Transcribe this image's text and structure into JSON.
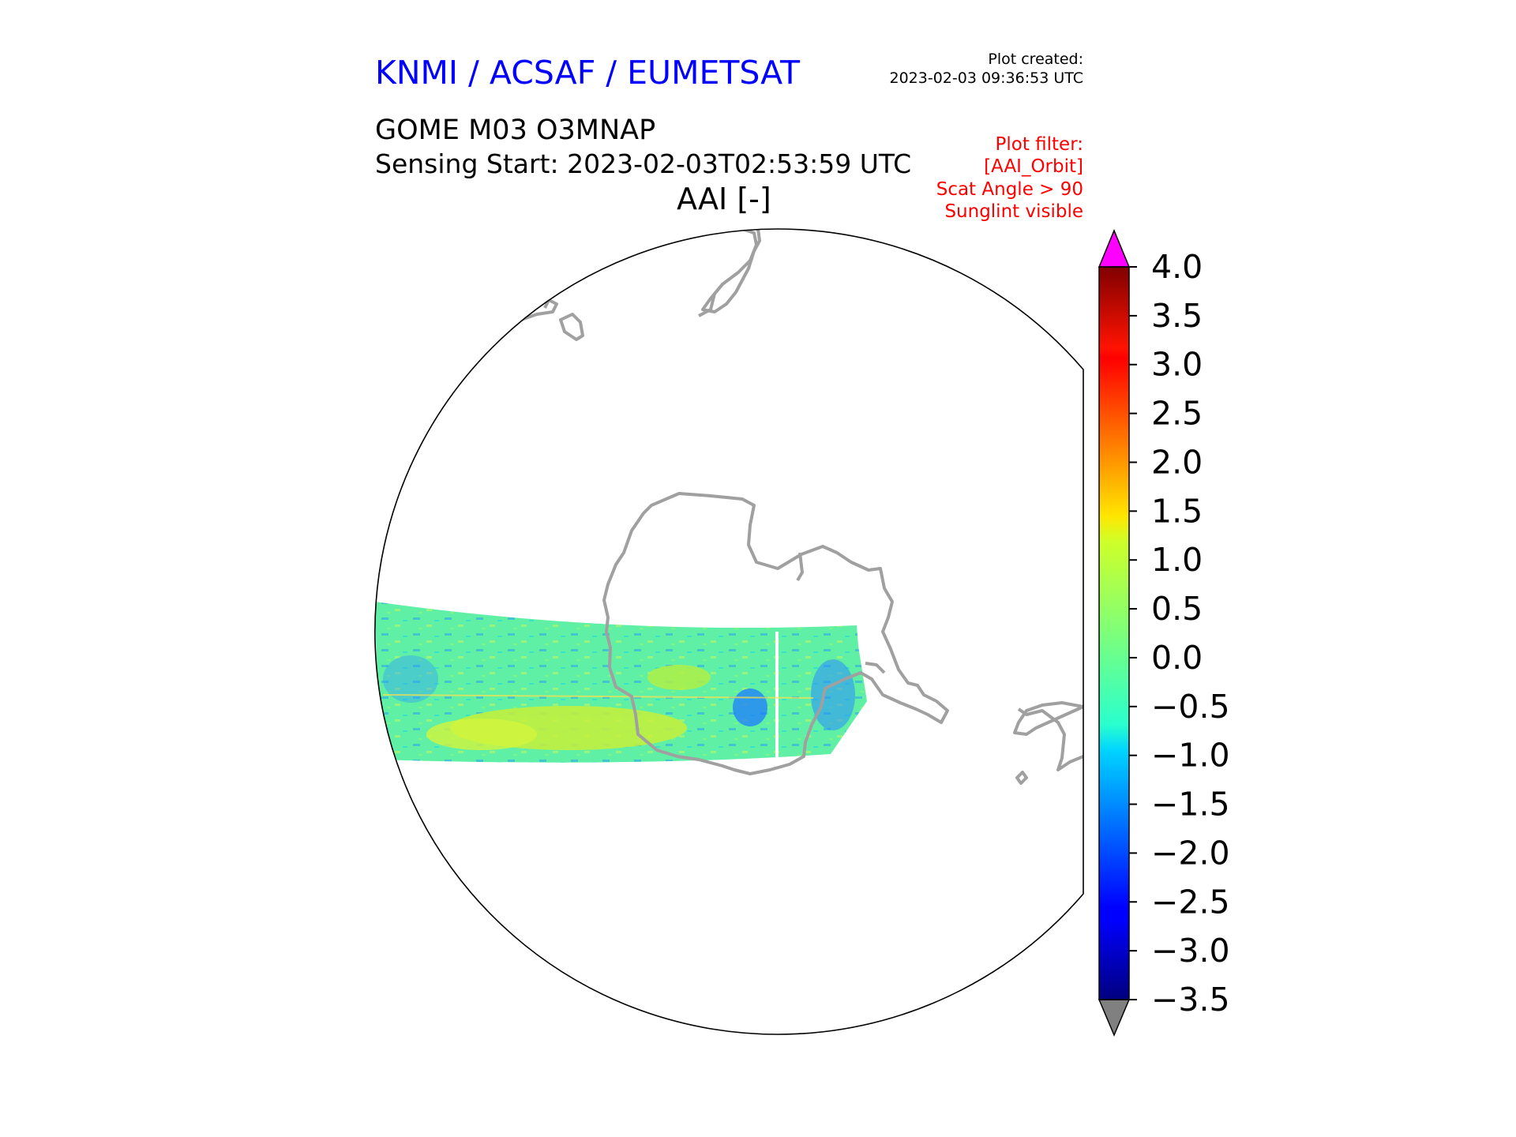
{
  "header": {
    "organization": "KNMI / ACSAF / EUMETSAT",
    "plot_created_label": "Plot created:",
    "plot_created_time": "2023-02-03 09:36:53 UTC",
    "product": "GOME M03 O3MNAP",
    "sensing_start": "Sensing Start: 2023-02-03T02:53:59 UTC",
    "parameter": "AAI [-]"
  },
  "filter": {
    "lines": [
      "Plot filter:",
      "[AAI_Orbit]",
      "Scat Angle > 90",
      "Sunglint visible"
    ]
  },
  "colors": {
    "organization_text": "#0000ff",
    "filter_text": "#ff0000",
    "coastline": "#a0a0a0",
    "over_range": "#ff00ff",
    "under_range": "#808080",
    "colormap": "jet"
  },
  "colorbar": {
    "min": -3.5,
    "max": 4.0,
    "ticks": [
      "4.0",
      "3.5",
      "3.0",
      "2.5",
      "2.0",
      "1.5",
      "1.0",
      "0.5",
      "0.0",
      "−0.5",
      "−1.0",
      "−1.5",
      "−2.0",
      "−2.5",
      "−3.0",
      "−3.5"
    ],
    "extend": "both"
  },
  "map": {
    "projection": "orthographic",
    "swath_typical_value_range": [
      -1.0,
      1.5
    ]
  }
}
